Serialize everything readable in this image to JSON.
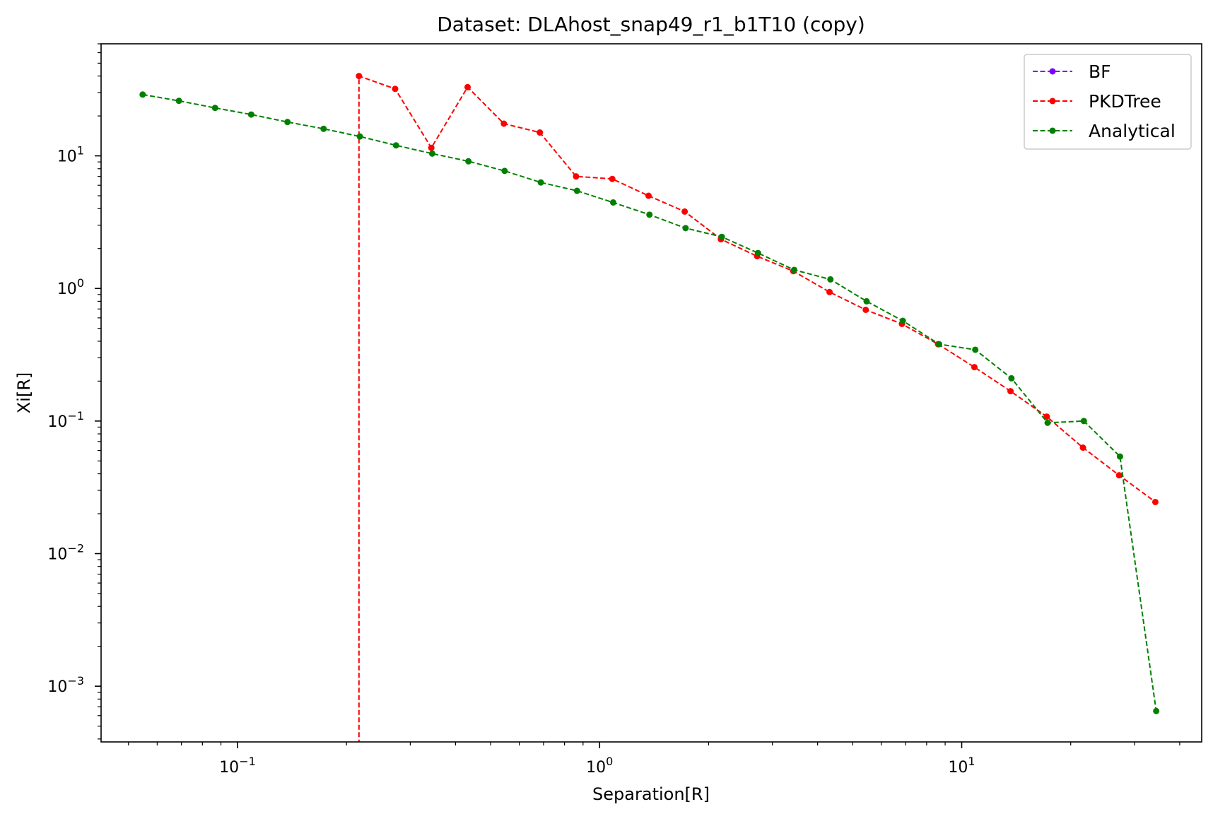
{
  "chart_data": {
    "type": "line",
    "title": "Dataset: DLAhost_snap49_r1_b1T10 (copy)",
    "xlabel": "Separation[R]",
    "ylabel": "Xi[R]",
    "xscale": "log",
    "yscale": "log",
    "xlim": [
      0.042,
      46
    ],
    "ylim": [
      0.00038,
      70
    ],
    "grid": false,
    "legend_position": "top-right",
    "x_ticks": [
      {
        "base": "10",
        "exp": "−1",
        "value": 0.1
      },
      {
        "base": "10",
        "exp": "0",
        "value": 1
      },
      {
        "base": "10",
        "exp": "1",
        "value": 10
      }
    ],
    "y_ticks": [
      {
        "base": "10",
        "exp": "−3",
        "value": 0.001
      },
      {
        "base": "10",
        "exp": "−2",
        "value": 0.01
      },
      {
        "base": "10",
        "exp": "−1",
        "value": 0.1
      },
      {
        "base": "10",
        "exp": "0",
        "value": 1
      },
      {
        "base": "10",
        "exp": "1",
        "value": 10
      }
    ],
    "series": [
      {
        "name": "BF",
        "color": "#8000ff",
        "x": [],
        "y": []
      },
      {
        "name": "PKDTree",
        "color": "#ff0000",
        "x": [
          0.2165,
          0.2165,
          0.2725,
          0.343,
          0.432,
          0.544,
          0.684,
          0.861,
          1.084,
          1.365,
          1.718,
          2.163,
          2.723,
          3.428,
          4.315,
          5.432,
          6.838,
          8.608,
          10.84,
          13.64,
          17.17,
          21.62,
          27.21,
          34.26
        ],
        "y": [
          0.0001,
          40,
          32,
          11.5,
          33,
          17.5,
          15,
          7.0,
          6.7,
          5.0,
          3.8,
          2.35,
          1.75,
          1.35,
          0.94,
          0.69,
          0.54,
          0.38,
          0.255,
          0.168,
          0.108,
          0.063,
          0.039,
          0.0245
        ]
      },
      {
        "name": "Analytical",
        "color": "#008000",
        "x": [
          0.0547,
          0.0689,
          0.0867,
          0.1091,
          0.1374,
          0.1729,
          0.2177,
          0.274,
          0.3449,
          0.4342,
          0.5466,
          0.6881,
          0.8662,
          1.09,
          1.373,
          1.728,
          2.175,
          2.738,
          3.447,
          4.339,
          5.462,
          6.876,
          8.656,
          10.9,
          13.72,
          17.27,
          21.74,
          27.36,
          34.45
        ],
        "y": [
          29,
          26,
          23,
          20.5,
          18,
          16,
          14,
          12,
          10.4,
          9.1,
          7.7,
          6.3,
          5.45,
          4.45,
          3.6,
          2.85,
          2.45,
          1.85,
          1.38,
          1.17,
          0.8,
          0.57,
          0.38,
          0.345,
          0.21,
          0.097,
          0.1,
          0.054,
          0.00065
        ]
      }
    ]
  }
}
